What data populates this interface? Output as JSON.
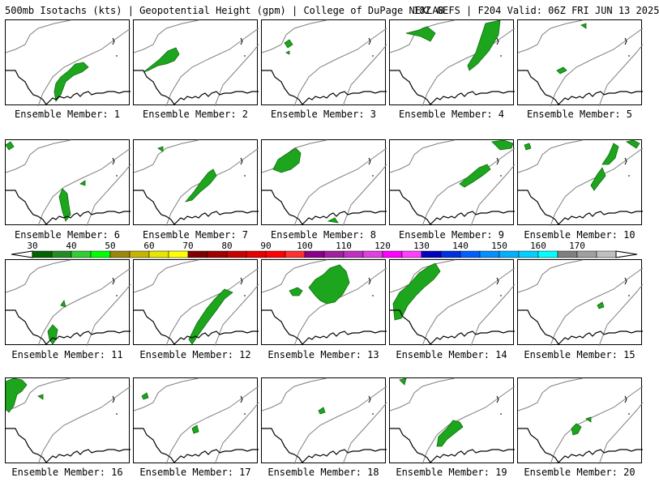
{
  "header": {
    "left": "500mb Isotachs (kts) | Geopotential Height (gpm) | College of DuPage NEXLAB",
    "right": "18Z GEFS | F204 Valid: 06Z FRI JUN 13 2025"
  },
  "colors": {
    "map_line": "#000000",
    "height_contour": "#808080",
    "isotach_fill": "#1ea51e",
    "isotach_edge": "#0b6b0b"
  },
  "members": [
    {
      "label": "Ensemble Member: 1"
    },
    {
      "label": "Ensemble Member: 2"
    },
    {
      "label": "Ensemble Member: 3"
    },
    {
      "label": "Ensemble Member: 4"
    },
    {
      "label": "Ensemble Member: 5"
    },
    {
      "label": "Ensemble Member: 6"
    },
    {
      "label": "Ensemble Member: 7"
    },
    {
      "label": "Ensemble Member: 8"
    },
    {
      "label": "Ensemble Member: 9"
    },
    {
      "label": "Ensemble Member: 10"
    },
    {
      "label": "Ensemble Member: 11"
    },
    {
      "label": "Ensemble Member: 12"
    },
    {
      "label": "Ensemble Member: 13"
    },
    {
      "label": "Ensemble Member: 14"
    },
    {
      "label": "Ensemble Member: 15"
    },
    {
      "label": "Ensemble Member: 16"
    },
    {
      "label": "Ensemble Member: 17"
    },
    {
      "label": "Ensemble Member: 18"
    },
    {
      "label": "Ensemble Member: 19"
    },
    {
      "label": "Ensemble Member: 20"
    }
  ],
  "colorbar": {
    "ticks": [
      "30",
      "40",
      "50",
      "60",
      "70",
      "80",
      "90",
      "100",
      "110",
      "120",
      "130",
      "140",
      "150",
      "160",
      "170"
    ],
    "colors": [
      "#006400",
      "#228b22",
      "#32cd32",
      "#00ff00",
      "#9b870c",
      "#c8b400",
      "#e6e600",
      "#ffff00",
      "#800000",
      "#a00000",
      "#c80000",
      "#e60000",
      "#ff0000",
      "#ff3030",
      "#8b008b",
      "#a020a0",
      "#c030c0",
      "#e040e0",
      "#ff00ff",
      "#ff40ff",
      "#0000c0",
      "#0030e0",
      "#0060ff",
      "#0090ff",
      "#00b0ff",
      "#00d0ff",
      "#00ffff",
      "#808080",
      "#a0a0a0",
      "#c0c0c0"
    ]
  }
}
